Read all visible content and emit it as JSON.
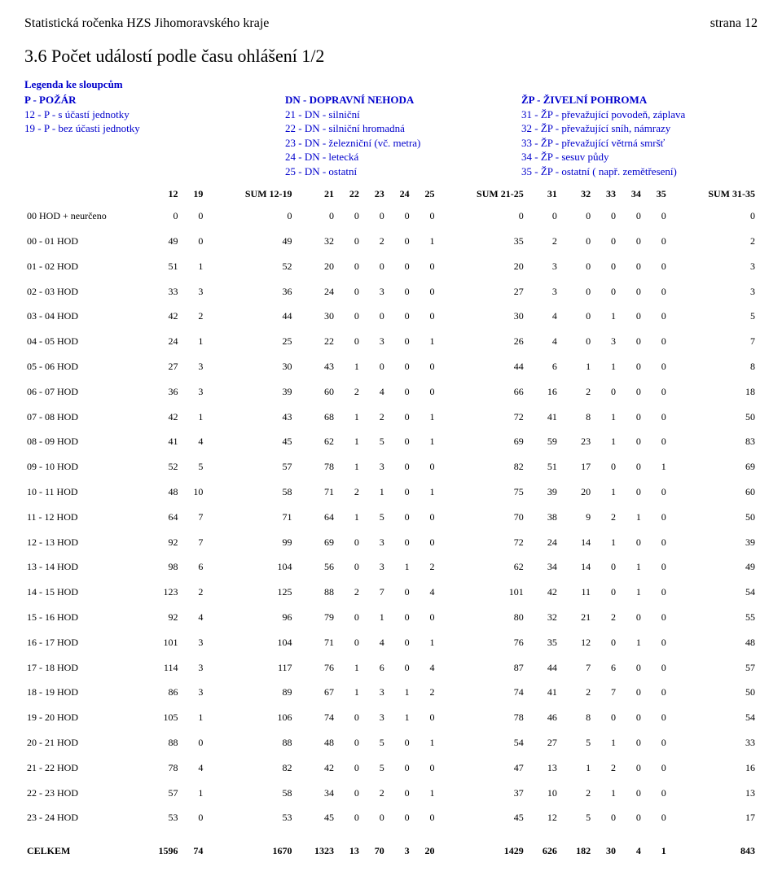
{
  "header": {
    "left": "Statistická ročenka HZS Jihomoravského kraje",
    "right": "strana 12"
  },
  "title": "3.6 Počet událostí podle času ohlášení 1/2",
  "legend": {
    "title": "Legenda ke sloupcům",
    "col1": {
      "head": "P - POŽÁR",
      "lines": [
        "12 - P - s účastí jednotky",
        "19 - P - bez účasti jednotky"
      ]
    },
    "col2": {
      "head": "DN - DOPRAVNÍ NEHODA",
      "lines": [
        "21 - DN - silniční",
        "22 - DN - silniční hromadná",
        "23 - DN - železniční (vč. metra)",
        "24 - DN - letecká",
        "25 - DN - ostatní"
      ]
    },
    "col3": {
      "head": "ŽP - ŽIVELNÍ POHROMA",
      "lines": [
        "31 - ŽP - převažující povodeň, záplava",
        "32 - ŽP - převažující sníh, námrazy",
        "33 - ŽP - převažující větrná smršť",
        "34 - ŽP - sesuv půdy",
        "35 - ŽP - ostatní ( např. zemětřesení)"
      ]
    }
  },
  "table": {
    "columns": [
      "",
      "12",
      "19",
      "SUM 12-19",
      "21",
      "22",
      "23",
      "24",
      "25",
      "SUM 21-25",
      "31",
      "32",
      "33",
      "34",
      "35",
      "SUM 31-35"
    ],
    "rows": [
      [
        "00 HOD + neurčeno",
        0,
        0,
        0,
        0,
        0,
        0,
        0,
        0,
        0,
        0,
        0,
        0,
        0,
        0,
        0
      ],
      [
        "00 - 01 HOD",
        49,
        0,
        49,
        32,
        0,
        2,
        0,
        1,
        35,
        2,
        0,
        0,
        0,
        0,
        2
      ],
      [
        "01 - 02 HOD",
        51,
        1,
        52,
        20,
        0,
        0,
        0,
        0,
        20,
        3,
        0,
        0,
        0,
        0,
        3
      ],
      [
        "02 - 03 HOD",
        33,
        3,
        36,
        24,
        0,
        3,
        0,
        0,
        27,
        3,
        0,
        0,
        0,
        0,
        3
      ],
      [
        "03 - 04 HOD",
        42,
        2,
        44,
        30,
        0,
        0,
        0,
        0,
        30,
        4,
        0,
        1,
        0,
        0,
        5
      ],
      [
        "04 - 05 HOD",
        24,
        1,
        25,
        22,
        0,
        3,
        0,
        1,
        26,
        4,
        0,
        3,
        0,
        0,
        7
      ],
      [
        "05 - 06 HOD",
        27,
        3,
        30,
        43,
        1,
        0,
        0,
        0,
        44,
        6,
        1,
        1,
        0,
        0,
        8
      ],
      [
        "06 - 07 HOD",
        36,
        3,
        39,
        60,
        2,
        4,
        0,
        0,
        66,
        16,
        2,
        0,
        0,
        0,
        18
      ],
      [
        "07 - 08 HOD",
        42,
        1,
        43,
        68,
        1,
        2,
        0,
        1,
        72,
        41,
        8,
        1,
        0,
        0,
        50
      ],
      [
        "08 - 09 HOD",
        41,
        4,
        45,
        62,
        1,
        5,
        0,
        1,
        69,
        59,
        23,
        1,
        0,
        0,
        83
      ],
      [
        "09 - 10 HOD",
        52,
        5,
        57,
        78,
        1,
        3,
        0,
        0,
        82,
        51,
        17,
        0,
        0,
        1,
        69
      ],
      [
        "10 - 11 HOD",
        48,
        10,
        58,
        71,
        2,
        1,
        0,
        1,
        75,
        39,
        20,
        1,
        0,
        0,
        60
      ],
      [
        "11 - 12 HOD",
        64,
        7,
        71,
        64,
        1,
        5,
        0,
        0,
        70,
        38,
        9,
        2,
        1,
        0,
        50
      ],
      [
        "12 - 13 HOD",
        92,
        7,
        99,
        69,
        0,
        3,
        0,
        0,
        72,
        24,
        14,
        1,
        0,
        0,
        39
      ],
      [
        "13 - 14 HOD",
        98,
        6,
        104,
        56,
        0,
        3,
        1,
        2,
        62,
        34,
        14,
        0,
        1,
        0,
        49
      ],
      [
        "14 - 15 HOD",
        123,
        2,
        125,
        88,
        2,
        7,
        0,
        4,
        101,
        42,
        11,
        0,
        1,
        0,
        54
      ],
      [
        "15 - 16 HOD",
        92,
        4,
        96,
        79,
        0,
        1,
        0,
        0,
        80,
        32,
        21,
        2,
        0,
        0,
        55
      ],
      [
        "16 - 17 HOD",
        101,
        3,
        104,
        71,
        0,
        4,
        0,
        1,
        76,
        35,
        12,
        0,
        1,
        0,
        48
      ],
      [
        "17 - 18 HOD",
        114,
        3,
        117,
        76,
        1,
        6,
        0,
        4,
        87,
        44,
        7,
        6,
        0,
        0,
        57
      ],
      [
        "18 - 19 HOD",
        86,
        3,
        89,
        67,
        1,
        3,
        1,
        2,
        74,
        41,
        2,
        7,
        0,
        0,
        50
      ],
      [
        "19 - 20 HOD",
        105,
        1,
        106,
        74,
        0,
        3,
        1,
        0,
        78,
        46,
        8,
        0,
        0,
        0,
        54
      ],
      [
        "20 - 21 HOD",
        88,
        0,
        88,
        48,
        0,
        5,
        0,
        1,
        54,
        27,
        5,
        1,
        0,
        0,
        33
      ],
      [
        "21 - 22 HOD",
        78,
        4,
        82,
        42,
        0,
        5,
        0,
        0,
        47,
        13,
        1,
        2,
        0,
        0,
        16
      ],
      [
        "22 - 23 HOD",
        57,
        1,
        58,
        34,
        0,
        2,
        0,
        1,
        37,
        10,
        2,
        1,
        0,
        0,
        13
      ],
      [
        "23 - 24 HOD",
        53,
        0,
        53,
        45,
        0,
        0,
        0,
        0,
        45,
        12,
        5,
        0,
        0,
        0,
        17
      ]
    ],
    "totals": [
      "CELKEM",
      1596,
      74,
      1670,
      1323,
      13,
      70,
      3,
      20,
      1429,
      626,
      182,
      30,
      4,
      1,
      843
    ]
  }
}
